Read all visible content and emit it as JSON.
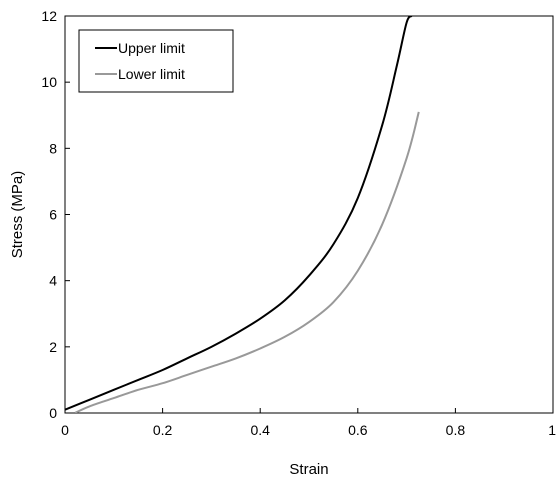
{
  "chart_data": {
    "type": "line",
    "title": "",
    "xlabel": "Strain",
    "ylabel": "Stress (MPa)",
    "xlim": [
      0,
      1
    ],
    "ylim": [
      0,
      12
    ],
    "xticks": [
      0,
      0.2,
      0.4,
      0.6,
      0.8,
      1
    ],
    "yticks": [
      0,
      2,
      4,
      6,
      8,
      10,
      12
    ],
    "xtick_labels": [
      "0",
      "0.2",
      "0.4",
      "0.6",
      "0.8",
      "1"
    ],
    "ytick_labels": [
      "0",
      "2",
      "4",
      "6",
      "8",
      "10",
      "12"
    ],
    "grid": false,
    "legend_position": "top-left",
    "series": [
      {
        "name": "Upper limit",
        "color": "#000000",
        "x": [
          0,
          0.05,
          0.1,
          0.15,
          0.2,
          0.25,
          0.3,
          0.35,
          0.4,
          0.45,
          0.5,
          0.55,
          0.6,
          0.65,
          0.68,
          0.7,
          0.71
        ],
        "y": [
          0.1,
          0.4,
          0.7,
          1.0,
          1.3,
          1.65,
          2.0,
          2.4,
          2.85,
          3.4,
          4.15,
          5.1,
          6.5,
          8.7,
          10.5,
          11.8,
          12.0
        ]
      },
      {
        "name": "Lower limit",
        "color": "#999999",
        "x": [
          0.02,
          0.05,
          0.1,
          0.15,
          0.2,
          0.25,
          0.3,
          0.35,
          0.4,
          0.45,
          0.5,
          0.55,
          0.6,
          0.65,
          0.7,
          0.725
        ],
        "y": [
          0.0,
          0.2,
          0.45,
          0.7,
          0.9,
          1.15,
          1.4,
          1.65,
          1.95,
          2.3,
          2.75,
          3.35,
          4.3,
          5.7,
          7.7,
          9.1
        ]
      }
    ]
  }
}
